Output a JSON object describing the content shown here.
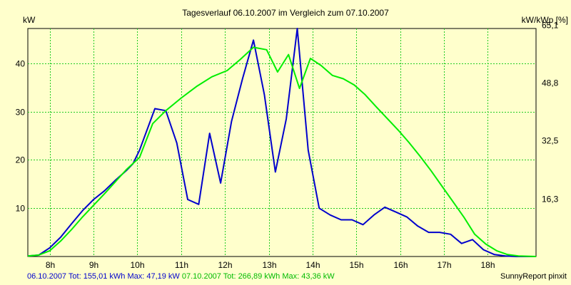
{
  "chart_data": {
    "type": "line",
    "title": "Tagesverlauf 06.10.2007 im Vergleich zum 07.10.2007",
    "ylabel_left": "kW",
    "ylabel_right": "kW/kWp [%]",
    "x_range": [
      7.5,
      19.1
    ],
    "y_range": [
      0,
      47.2
    ],
    "x_ticks": [
      8,
      9,
      10,
      11,
      12,
      13,
      14,
      15,
      16,
      17,
      18
    ],
    "x_tick_labels": [
      "8h",
      "9h",
      "10h",
      "11h",
      "12h",
      "13h",
      "14h",
      "15h",
      "16h",
      "17h",
      "18h"
    ],
    "y_ticks_left": [
      10,
      20,
      30,
      40
    ],
    "y_ticks_left_labels": [
      "10",
      "20",
      "30",
      "40"
    ],
    "y_ticks_right_pos": [
      12.0,
      24.0,
      36.0,
      48.0
    ],
    "y_ticks_right_labels": [
      "16,3",
      "32,5",
      "48,8",
      "65,1"
    ],
    "grid": true,
    "series": [
      {
        "name": "06.10.2007",
        "color": "#0000cc",
        "x": [
          7.5,
          7.75,
          8.0,
          8.25,
          8.5,
          8.75,
          9.0,
          9.25,
          9.5,
          9.75,
          9.9,
          10.05,
          10.4,
          10.65,
          10.9,
          11.15,
          11.4,
          11.65,
          11.9,
          12.15,
          12.4,
          12.65,
          12.9,
          13.15,
          13.4,
          13.65,
          13.9,
          14.15,
          14.4,
          14.65,
          14.9,
          15.15,
          15.4,
          15.65,
          15.9,
          16.15,
          16.4,
          16.65,
          16.9,
          17.15,
          17.4,
          17.65,
          17.9,
          18.15,
          18.4,
          18.65,
          18.9,
          19.1
        ],
        "y": [
          0.1,
          0.3,
          1.8,
          4.0,
          6.8,
          9.5,
          11.8,
          13.6,
          15.8,
          17.8,
          19.2,
          22.0,
          30.6,
          30.2,
          23.5,
          11.8,
          10.8,
          25.5,
          15.2,
          28.0,
          36.8,
          44.8,
          33.5,
          17.5,
          28.5,
          47.2,
          22.0,
          10.0,
          8.6,
          7.6,
          7.6,
          6.6,
          8.6,
          10.2,
          9.2,
          8.2,
          6.3,
          5.0,
          5.0,
          4.6,
          2.7,
          3.5,
          1.4,
          0.4,
          0.1,
          0.0,
          0.0,
          0.0
        ]
      },
      {
        "name": "07.10.2007",
        "color": "#00ee00",
        "x": [
          7.5,
          7.75,
          8.0,
          8.25,
          8.5,
          8.75,
          9.0,
          9.25,
          9.5,
          9.75,
          10.05,
          10.35,
          10.65,
          11.0,
          11.35,
          11.7,
          12.05,
          12.35,
          12.65,
          12.95,
          13.2,
          13.45,
          13.7,
          13.95,
          14.2,
          14.45,
          14.7,
          14.95,
          15.2,
          15.45,
          15.7,
          15.95,
          16.2,
          16.45,
          16.7,
          16.95,
          17.2,
          17.45,
          17.7,
          17.95,
          18.2,
          18.45,
          18.7,
          19.1
        ],
        "y": [
          0.1,
          0.3,
          1.2,
          3.2,
          5.6,
          8.2,
          10.6,
          13.0,
          15.5,
          18.0,
          20.5,
          27.5,
          30.2,
          32.8,
          35.2,
          37.2,
          38.5,
          40.8,
          43.3,
          42.8,
          38.2,
          41.8,
          34.8,
          41.0,
          39.5,
          37.5,
          36.8,
          35.5,
          33.5,
          31.0,
          28.6,
          26.2,
          23.6,
          20.8,
          17.8,
          14.6,
          11.4,
          8.2,
          4.6,
          2.6,
          1.2,
          0.4,
          0.1,
          0.0
        ]
      }
    ],
    "footer_left": [
      {
        "text": "06.10.2007 Tot: 155,01 kWh Max: 47,19 kW",
        "color": "#0000cc"
      },
      {
        "text": " 07.10.2007 Tot: 266,89 kWh Max: 43,36 kW",
        "color": "#00bb00"
      }
    ],
    "footer_right": "SunnyReport pinxit"
  }
}
